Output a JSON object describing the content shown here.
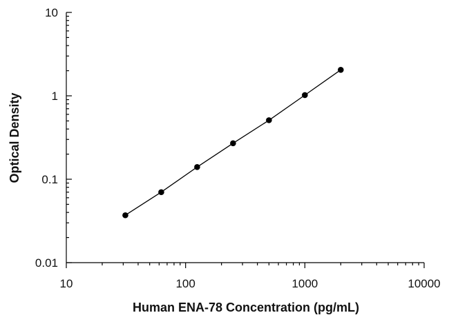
{
  "chart_data": {
    "type": "scatter",
    "title": "",
    "xlabel": "Human ENA-78 Concentration (pg/mL)",
    "ylabel": "Optical Density",
    "x_scale": "log",
    "y_scale": "log",
    "xlim": [
      10,
      10000
    ],
    "ylim": [
      0.01,
      10
    ],
    "x_ticks": [
      10,
      100,
      1000,
      10000
    ],
    "x_tick_labels": [
      "10",
      "100",
      "1000",
      "10000"
    ],
    "y_ticks": [
      0.01,
      0.1,
      1,
      10
    ],
    "y_tick_labels": [
      "0.01",
      "0.1",
      "1",
      "10"
    ],
    "grid": false,
    "legend": "none",
    "series": [
      {
        "x": [
          31.25,
          62.5,
          125,
          250,
          500,
          1000,
          2000
        ],
        "y": [
          0.037,
          0.07,
          0.14,
          0.27,
          0.51,
          1.02,
          2.05
        ],
        "marker": "circle",
        "line": true,
        "color": "#000000"
      }
    ]
  }
}
